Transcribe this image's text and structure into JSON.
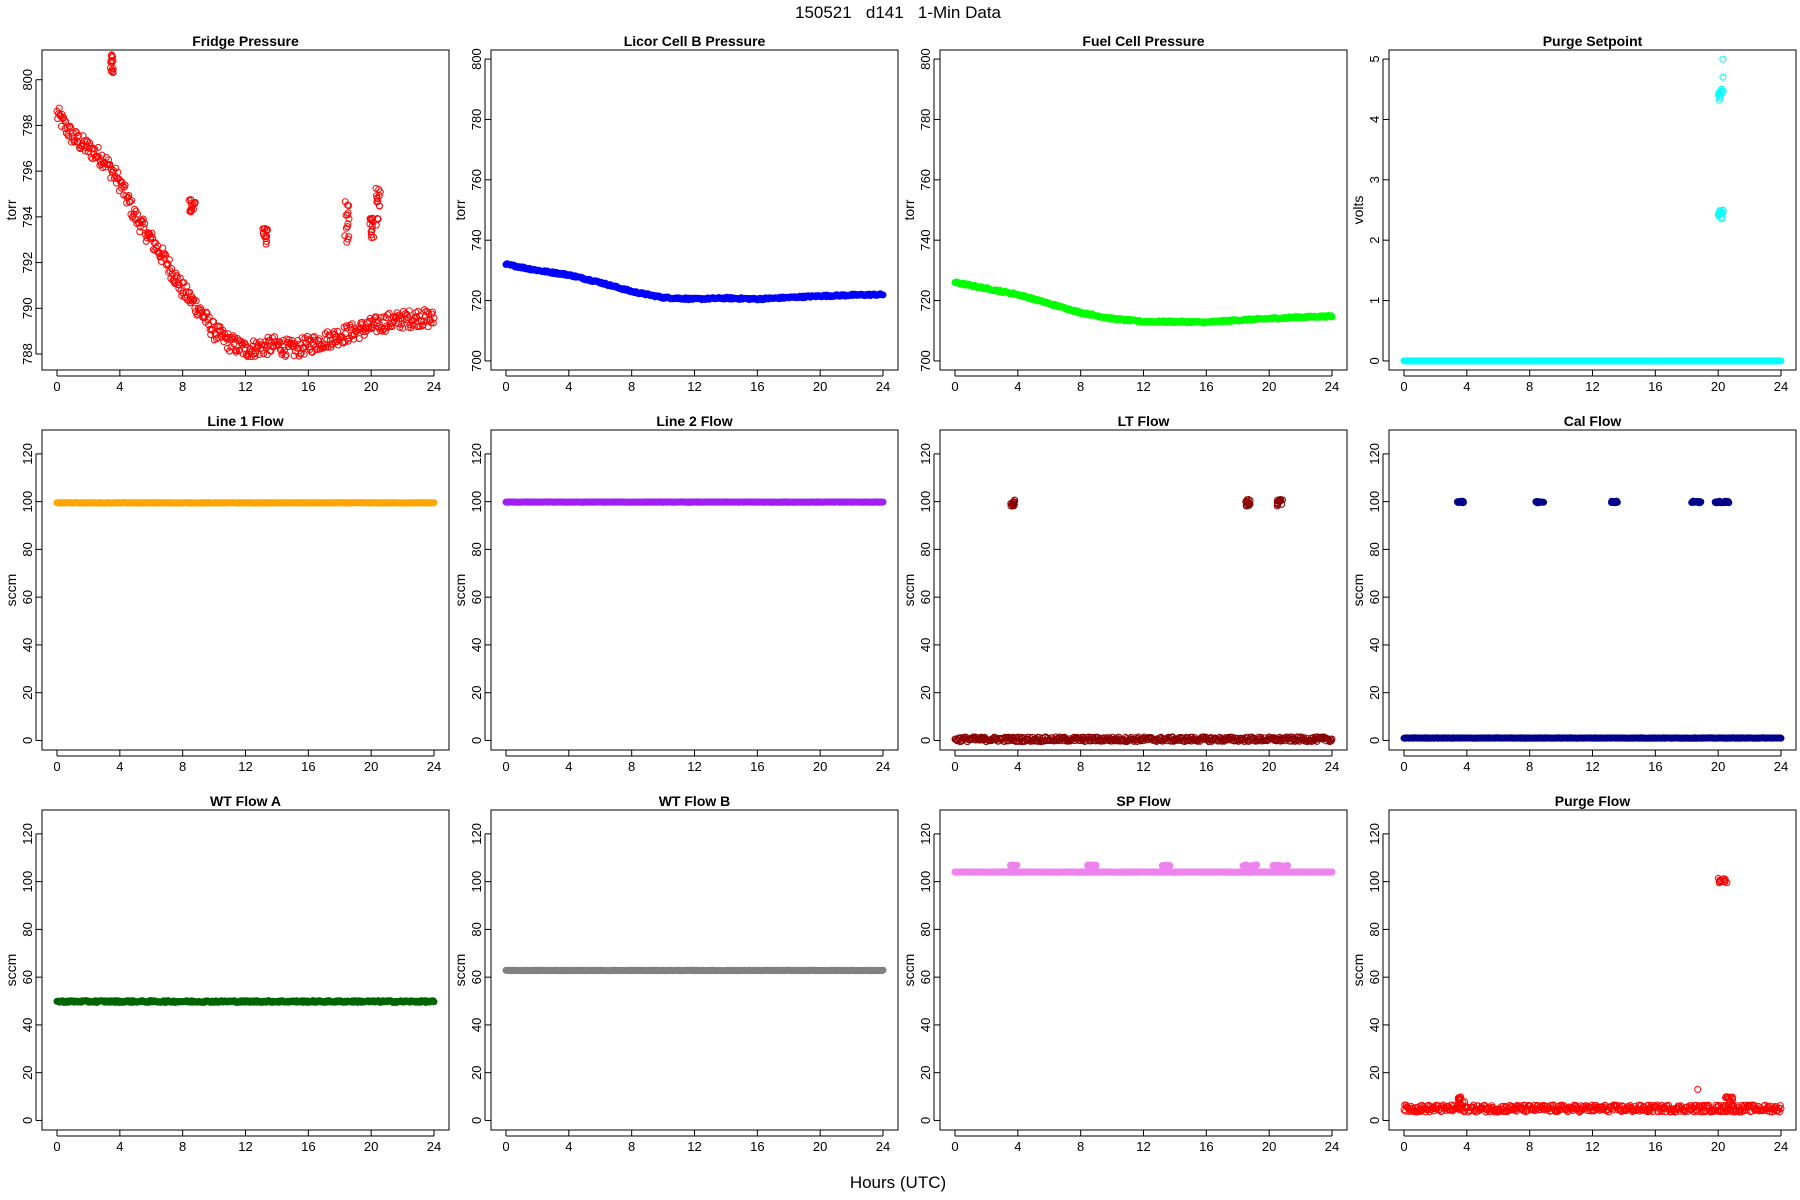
{
  "figure": {
    "title": "150521   d141   1-Min Data",
    "xlabel": "Hours (UTC)"
  },
  "chart_data": [
    {
      "type": "scatter",
      "title": "Fridge Pressure",
      "ylabel": "torr",
      "color": "#ff0000",
      "marker": "open-circle",
      "xlim": [
        0,
        24
      ],
      "xticks": [
        0,
        4,
        8,
        12,
        16,
        20,
        24
      ],
      "ylim": [
        787.3,
        801.3
      ],
      "yticks": [
        788,
        790,
        792,
        794,
        796,
        798,
        800
      ],
      "series": [
        {
          "trend": [
            [
              0,
              798.5
            ],
            [
              1,
              797.5
            ],
            [
              2,
              797
            ],
            [
              3,
              796.5
            ],
            [
              4,
              795.5
            ],
            [
              5,
              794
            ],
            [
              6,
              793
            ],
            [
              7,
              792
            ],
            [
              8,
              790.8
            ],
            [
              9,
              790
            ],
            [
              10,
              789
            ],
            [
              11,
              788.5
            ],
            [
              12,
              788.2
            ],
            [
              13,
              788.3
            ],
            [
              14,
              788.4
            ],
            [
              15,
              788.2
            ],
            [
              16,
              788.4
            ],
            [
              17,
              788.6
            ],
            [
              18,
              788.8
            ],
            [
              19,
              789
            ],
            [
              20,
              789.2
            ],
            [
              21,
              789.4
            ],
            [
              22,
              789.5
            ],
            [
              23,
              789.6
            ],
            [
              24,
              789.5
            ]
          ],
          "noise": 0.4,
          "clusters": [
            [
              3.4,
              3.6,
              800.2,
              801.2
            ],
            [
              8.4,
              8.8,
              794.1,
              794.8
            ],
            [
              13.1,
              13.4,
              792.8,
              793.5
            ],
            [
              18.3,
              18.6,
              792.6,
              794.7
            ],
            [
              19.9,
              20.2,
              793.0,
              794.0
            ],
            [
              20.3,
              20.6,
              793.5,
              795.3
            ]
          ]
        }
      ]
    },
    {
      "type": "scatter",
      "title": "Licor Cell B Pressure",
      "ylabel": "torr",
      "color": "#0000ff",
      "marker": "filled-dense",
      "xlim": [
        0,
        24
      ],
      "xticks": [
        0,
        4,
        8,
        12,
        16,
        20,
        24
      ],
      "ylim": [
        697,
        803
      ],
      "yticks": [
        700,
        720,
        740,
        760,
        780,
        800
      ],
      "series": [
        {
          "trend": [
            [
              0,
              732
            ],
            [
              2,
              730
            ],
            [
              4,
              728.5
            ],
            [
              6,
              726
            ],
            [
              8,
              723
            ],
            [
              10,
              721
            ],
            [
              12,
              720.5
            ],
            [
              14,
              720.8
            ],
            [
              16,
              720.5
            ],
            [
              18,
              721
            ],
            [
              20,
              721.5
            ],
            [
              22,
              721.8
            ],
            [
              24,
              722
            ]
          ],
          "noise": 0.3
        }
      ]
    },
    {
      "type": "scatter",
      "title": "Fuel Cell Pressure",
      "ylabel": "torr",
      "color": "#00ff00",
      "marker": "filled-dense",
      "xlim": [
        0,
        24
      ],
      "xticks": [
        0,
        4,
        8,
        12,
        16,
        20,
        24
      ],
      "ylim": [
        697,
        803
      ],
      "yticks": [
        700,
        720,
        740,
        760,
        780,
        800
      ],
      "series": [
        {
          "trend": [
            [
              0,
              726
            ],
            [
              2,
              724
            ],
            [
              4,
              722
            ],
            [
              6,
              719
            ],
            [
              8,
              716
            ],
            [
              10,
              714
            ],
            [
              12,
              713
            ],
            [
              14,
              713
            ],
            [
              16,
              712.8
            ],
            [
              18,
              713.5
            ],
            [
              20,
              714
            ],
            [
              22,
              714.5
            ],
            [
              24,
              714.8
            ]
          ],
          "noise": 0.3
        }
      ]
    },
    {
      "type": "scatter",
      "title": "Purge Setpoint",
      "ylabel": "volts",
      "color": "#00ffff",
      "marker": "open-circle",
      "xlim": [
        0,
        24
      ],
      "xticks": [
        0,
        4,
        8,
        12,
        16,
        20,
        24
      ],
      "ylim": [
        -0.15,
        5.15
      ],
      "yticks": [
        0,
        1,
        2,
        3,
        4,
        5
      ],
      "series": [
        {
          "trend": [
            [
              0,
              0
            ],
            [
              24,
              0
            ]
          ],
          "noise": 0,
          "clusters": [
            [
              20.0,
              20.4,
              4.3,
              4.5
            ],
            [
              20.0,
              20.4,
              2.35,
              2.5
            ]
          ],
          "points": [
            [
              20.3,
              5.0
            ],
            [
              20.3,
              4.7
            ]
          ]
        }
      ]
    },
    {
      "type": "scatter",
      "title": "Line 1 Flow",
      "ylabel": "sccm",
      "color": "#ffa500",
      "marker": "filled-dense",
      "xlim": [
        0,
        24
      ],
      "xticks": [
        0,
        4,
        8,
        12,
        16,
        20,
        24
      ],
      "ylim": [
        -4,
        130
      ],
      "yticks": [
        0,
        20,
        40,
        60,
        80,
        100,
        120
      ],
      "series": [
        {
          "trend": [
            [
              0,
              99.5
            ],
            [
              24,
              99.5
            ]
          ],
          "noise": 0.1
        }
      ]
    },
    {
      "type": "scatter",
      "title": "Line 2 Flow",
      "ylabel": "sccm",
      "color": "#a020f0",
      "marker": "filled-dense",
      "xlim": [
        0,
        24
      ],
      "xticks": [
        0,
        4,
        8,
        12,
        16,
        20,
        24
      ],
      "ylim": [
        -4,
        130
      ],
      "yticks": [
        0,
        20,
        40,
        60,
        80,
        100,
        120
      ],
      "series": [
        {
          "trend": [
            [
              0,
              99.8
            ],
            [
              24,
              99.8
            ]
          ],
          "noise": 0.1
        }
      ]
    },
    {
      "type": "scatter",
      "title": "LT Flow",
      "ylabel": "sccm",
      "color": "#8b0000",
      "marker": "open-circle",
      "xlim": [
        0,
        24
      ],
      "xticks": [
        0,
        4,
        8,
        12,
        16,
        20,
        24
      ],
      "ylim": [
        -4,
        130
      ],
      "yticks": [
        0,
        20,
        40,
        60,
        80,
        100,
        120
      ],
      "series": [
        {
          "trend": [
            [
              0,
              0.5
            ],
            [
              24,
              0.5
            ]
          ],
          "noise": 1.0,
          "clusters": [
            [
              3.5,
              3.8,
              98,
              101
            ],
            [
              18.5,
              18.8,
              98,
              101
            ],
            [
              20.5,
              20.9,
              98,
              101
            ]
          ]
        }
      ]
    },
    {
      "type": "scatter",
      "title": "Cal Flow",
      "ylabel": "sccm",
      "color": "#00008b",
      "marker": "filled-dense",
      "xlim": [
        0,
        24
      ],
      "xticks": [
        0,
        4,
        8,
        12,
        16,
        20,
        24
      ],
      "ylim": [
        -4,
        130
      ],
      "yticks": [
        0,
        20,
        40,
        60,
        80,
        100,
        120
      ],
      "series": [
        {
          "trend": [
            [
              0,
              1
            ],
            [
              24,
              1
            ]
          ],
          "noise": 0.1,
          "clusters": [
            [
              3.4,
              3.8,
              99.5,
              100.2
            ],
            [
              8.4,
              8.9,
              99.5,
              100.2
            ],
            [
              13.2,
              13.6,
              99.5,
              100.2
            ],
            [
              18.3,
              18.9,
              99.5,
              100.2
            ],
            [
              19.8,
              20.2,
              99.5,
              100.2
            ],
            [
              20.3,
              20.7,
              99.5,
              100.2
            ]
          ]
        }
      ]
    },
    {
      "type": "scatter",
      "title": "WT Flow A",
      "ylabel": "sccm",
      "color": "#006400",
      "marker": "filled-dense",
      "xlim": [
        0,
        24
      ],
      "xticks": [
        0,
        4,
        8,
        12,
        16,
        20,
        24
      ],
      "ylim": [
        -4,
        130
      ],
      "yticks": [
        0,
        20,
        40,
        60,
        80,
        100,
        120
      ],
      "series": [
        {
          "trend": [
            [
              0,
              49.8
            ],
            [
              24,
              49.8
            ]
          ],
          "noise": 0.4
        }
      ]
    },
    {
      "type": "scatter",
      "title": "WT Flow B",
      "ylabel": "sccm",
      "color": "#808080",
      "marker": "filled-dense",
      "xlim": [
        0,
        24
      ],
      "xticks": [
        0,
        4,
        8,
        12,
        16,
        20,
        24
      ],
      "ylim": [
        -4,
        130
      ],
      "yticks": [
        0,
        20,
        40,
        60,
        80,
        100,
        120
      ],
      "series": [
        {
          "trend": [
            [
              0,
              62.8
            ],
            [
              24,
              62.8
            ]
          ],
          "noise": 0.1
        }
      ]
    },
    {
      "type": "scatter",
      "title": "SP Flow",
      "ylabel": "sccm",
      "color": "#ee82ee",
      "marker": "filled-dense",
      "xlim": [
        0,
        24
      ],
      "xticks": [
        0,
        4,
        8,
        12,
        16,
        20,
        24
      ],
      "ylim": [
        -4,
        130
      ],
      "yticks": [
        0,
        20,
        40,
        60,
        80,
        100,
        120
      ],
      "series": [
        {
          "trend": [
            [
              0,
              104
            ],
            [
              24,
              104
            ]
          ],
          "noise": 0.1,
          "clusters": [
            [
              3.4,
              4.0,
              106.5,
              107
            ],
            [
              8.4,
              9.0,
              106.5,
              107
            ],
            [
              13.2,
              13.7,
              106.5,
              107
            ],
            [
              18.3,
              19.2,
              106.5,
              107
            ],
            [
              20.2,
              21.2,
              106.5,
              107
            ]
          ]
        }
      ]
    },
    {
      "type": "scatter",
      "title": "Purge Flow",
      "ylabel": "sccm",
      "color": "#ff0000",
      "marker": "open-circle",
      "xlim": [
        0,
        24
      ],
      "xticks": [
        0,
        4,
        8,
        12,
        16,
        20,
        24
      ],
      "ylim": [
        -4,
        130
      ],
      "yticks": [
        0,
        20,
        40,
        60,
        80,
        100,
        120
      ],
      "series": [
        {
          "trend": [
            [
              0,
              5
            ],
            [
              24,
              5
            ]
          ],
          "noise": 1.5,
          "clusters": [
            [
              20.0,
              20.6,
              99.5,
              101.5
            ],
            [
              3.4,
              3.9,
              6,
              10
            ],
            [
              20.4,
              21.0,
              6,
              10
            ]
          ],
          "points": [
            [
              18.7,
              13
            ]
          ]
        }
      ]
    }
  ]
}
